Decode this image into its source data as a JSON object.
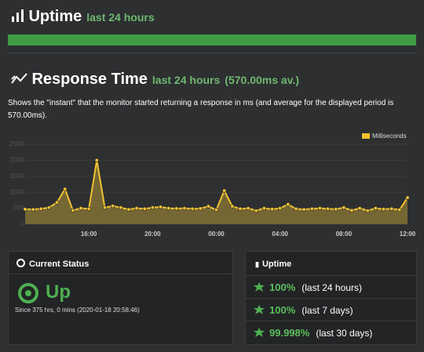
{
  "uptime_header": {
    "title": "Uptime",
    "subtitle": "last 24 hours"
  },
  "response_header": {
    "title": "Response Time",
    "subtitle": "last 24 hours",
    "average": "(570.00ms av.)",
    "description": "Shows the \"instant\" that the monitor started returning a response in ms (and average for the displayed period is 570.00ms)."
  },
  "response_chart": {
    "type": "area",
    "categories": [
      null,
      null,
      null,
      null,
      null,
      null,
      null,
      null,
      "16:00",
      null,
      null,
      null,
      null,
      null,
      null,
      null,
      "20:00",
      null,
      null,
      null,
      null,
      null,
      null,
      null,
      "00:00",
      null,
      null,
      null,
      null,
      null,
      null,
      null,
      "04:00",
      null,
      null,
      null,
      null,
      null,
      null,
      null,
      "08:00",
      null,
      null,
      null,
      null,
      null,
      null,
      null,
      "12:00"
    ],
    "series_name": "Milliseconds",
    "color": "#f2c230",
    "fill": "#7d6e34",
    "values": [
      470,
      460,
      480,
      520,
      680,
      1100,
      430,
      500,
      480,
      2000,
      520,
      570,
      520,
      460,
      500,
      480,
      520,
      540,
      500,
      490,
      500,
      480,
      490,
      560,
      450,
      1050,
      560,
      480,
      500,
      420,
      500,
      470,
      500,
      620,
      480,
      460,
      480,
      500,
      480,
      470,
      520,
      430,
      500,
      420,
      500,
      470,
      480,
      450,
      830
    ],
    "ylim": [
      0,
      2500
    ],
    "yticks": [
      0,
      500,
      1000,
      1500,
      2000,
      2500
    ],
    "grid": true
  },
  "current_status": {
    "title": "Current Status",
    "status": "Up",
    "since": "Since 375 hrs, 0 mins (2020-01-18 20:58:46)"
  },
  "uptime_panel": {
    "title": "Uptime",
    "rows": [
      [
        "100%",
        "(last 24 hours)"
      ],
      [
        "100%",
        "(last 7 days)"
      ],
      [
        "99.998%",
        "(last 30 days)"
      ]
    ]
  }
}
